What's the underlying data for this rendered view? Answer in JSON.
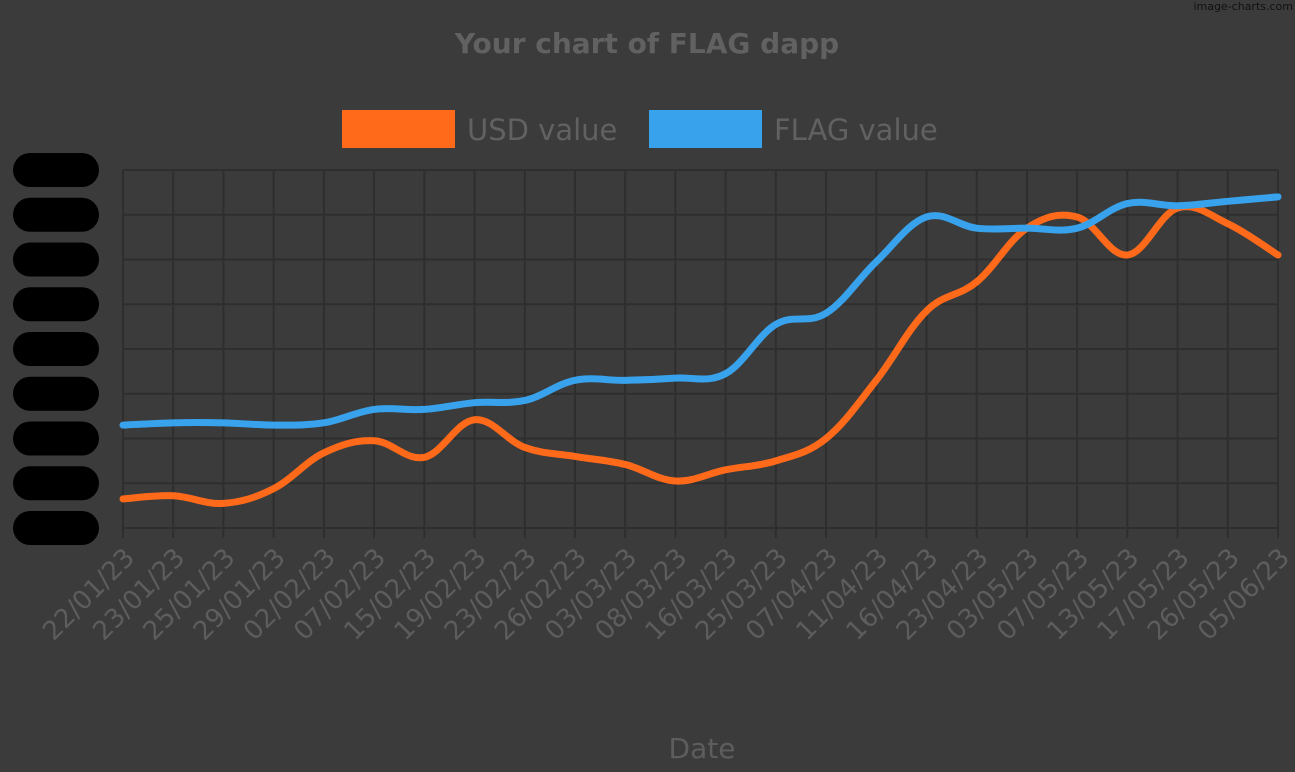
{
  "watermark": "image-charts.com",
  "chart_data": {
    "type": "line",
    "title": "Your chart of FLAG dapp",
    "xlabel": "Date",
    "ylabel": "",
    "grid": true,
    "legend_placement": "top",
    "y_tick_labels_redacted": true,
    "x": [
      "22/01/23",
      "23/01/23",
      "25/01/23",
      "29/01/23",
      "02/02/23",
      "07/02/23",
      "15/02/23",
      "19/02/23",
      "23/02/23",
      "26/02/23",
      "03/03/23",
      "08/03/23",
      "16/03/23",
      "25/03/23",
      "07/04/23",
      "11/04/23",
      "16/04/23",
      "23/04/23",
      "03/05/23",
      "07/05/23",
      "13/05/23",
      "17/05/23",
      "26/05/23",
      "05/06/23"
    ],
    "series": [
      {
        "name": "USD value",
        "color": "#ff6a1a",
        "values": [
          0.65,
          0.72,
          0.55,
          0.88,
          1.68,
          1.95,
          1.58,
          2.42,
          1.8,
          1.6,
          1.42,
          1.05,
          1.3,
          1.5,
          2.0,
          3.3,
          4.85,
          5.5,
          6.7,
          6.95,
          6.1,
          7.15,
          6.8,
          6.1
        ],
        "smooth": true
      },
      {
        "name": "FLAG value",
        "color": "#39a2ec",
        "values": [
          2.3,
          2.35,
          2.35,
          2.3,
          2.35,
          2.65,
          2.65,
          2.8,
          2.85,
          3.3,
          3.3,
          3.35,
          3.45,
          4.55,
          4.8,
          5.95,
          6.95,
          6.7,
          6.7,
          6.7,
          7.25,
          7.2,
          7.3,
          7.4
        ],
        "smooth": true
      }
    ],
    "ylim": [
      0,
      8
    ]
  }
}
